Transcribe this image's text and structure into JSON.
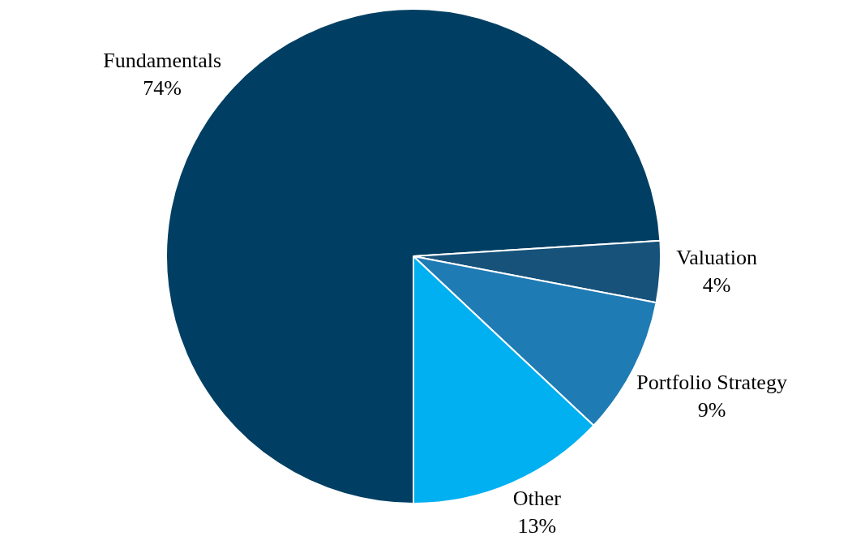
{
  "chart_data": {
    "type": "pie",
    "categories": [
      "Fundamentals",
      "Valuation",
      "Portfolio Strategy",
      "Other"
    ],
    "values": [
      74,
      4,
      9,
      13
    ],
    "value_labels": [
      "74%",
      "4%",
      "9%",
      "13%"
    ],
    "colors": [
      "#003f63",
      "#17527a",
      "#1f7bb4",
      "#00b0f0"
    ],
    "legend": false
  }
}
